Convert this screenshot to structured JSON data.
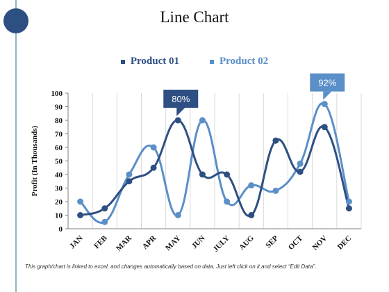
{
  "slide": {
    "title": "Line Chart",
    "footnote": "This graph/chart is linked to excel, and changes automatically based on data. Just left click on it and select “Edit Data”."
  },
  "chart_data": {
    "type": "line",
    "title": "Line Chart",
    "xlabel": "",
    "ylabel": "Profit (In Thousands)",
    "categories": [
      "JAN",
      "FEB",
      "MAR",
      "APR",
      "MAY",
      "JUN",
      "JULY",
      "AUG",
      "SEP",
      "OCT",
      "NOV",
      "DEC"
    ],
    "ylim": [
      0,
      100
    ],
    "yticks": [
      0,
      10,
      20,
      30,
      40,
      50,
      60,
      70,
      80,
      90,
      100
    ],
    "grid": "vertical",
    "legend": "top-center",
    "series": [
      {
        "name": "Product 01",
        "color": "#2e4f82",
        "values": [
          10,
          15,
          35,
          45,
          80,
          40,
          40,
          10,
          65,
          42,
          75,
          15
        ]
      },
      {
        "name": "Product 02",
        "color": "#5b8fc7",
        "values": [
          20,
          5,
          40,
          60,
          10,
          80,
          20,
          32,
          28,
          48,
          92,
          20
        ]
      }
    ],
    "annotations": [
      {
        "text": "80%",
        "series": 0,
        "category": "MAY",
        "color": "#2e4f82"
      },
      {
        "text": "92%",
        "series": 1,
        "category": "NOV",
        "color": "#5b8fc7"
      }
    ]
  },
  "decor": {
    "accent_circle_color": "#2e4f82",
    "left_rule_color": "#8fb3c2"
  }
}
